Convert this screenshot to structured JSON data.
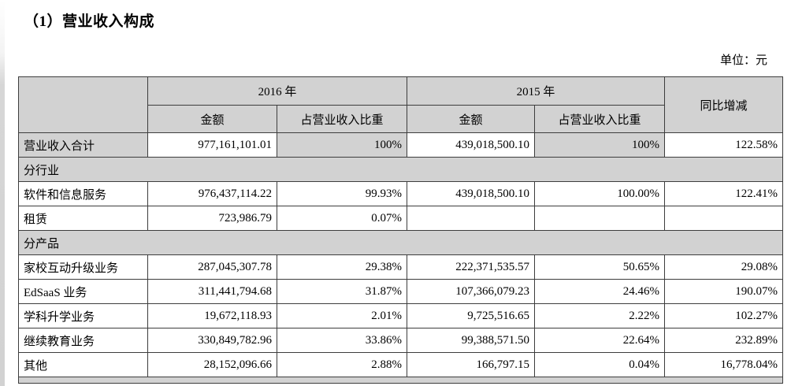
{
  "page": {
    "title": "（1）营业收入构成",
    "unit_label": "单位：元"
  },
  "table": {
    "header": {
      "year_2016": "2016 年",
      "year_2015": "2015 年",
      "yoy": "同比增减",
      "amount": "金额",
      "ratio": "占营业收入比重"
    },
    "rows": [
      {
        "type": "data",
        "label": "营业收入合计",
        "a2016": "977,161,101.01",
        "r2016": "100%",
        "a2015": "439,018,500.10",
        "r2015": "100%",
        "yoy": "122.58%"
      },
      {
        "type": "section",
        "label": "分行业"
      },
      {
        "type": "data",
        "label": "软件和信息服务",
        "a2016": "976,437,114.22",
        "r2016": "99.93%",
        "a2015": "439,018,500.10",
        "r2015": "100.00%",
        "yoy": "122.41%"
      },
      {
        "type": "data",
        "label": "租赁",
        "a2016": "723,986.79",
        "r2016": "0.07%",
        "a2015": "",
        "r2015": "",
        "yoy": ""
      },
      {
        "type": "section",
        "label": "分产品"
      },
      {
        "type": "data",
        "label": "家校互动升级业务",
        "a2016": "287,045,307.78",
        "r2016": "29.38%",
        "a2015": "222,371,535.57",
        "r2015": "50.65%",
        "yoy": "29.08%"
      },
      {
        "type": "data",
        "label": "EdSaaS 业务",
        "a2016": "311,441,794.68",
        "r2016": "31.87%",
        "a2015": "107,366,079.23",
        "r2015": "24.46%",
        "yoy": "190.07%"
      },
      {
        "type": "data",
        "label": "学科升学业务",
        "a2016": "19,672,118.93",
        "r2016": "2.01%",
        "a2015": "9,725,516.65",
        "r2015": "2.22%",
        "yoy": "102.27%"
      },
      {
        "type": "data",
        "label": "继续教育业务",
        "a2016": "330,849,782.96",
        "r2016": "33.86%",
        "a2015": "99,388,571.50",
        "r2015": "22.64%",
        "yoy": "232.89%"
      },
      {
        "type": "data",
        "label": "其他",
        "a2016": "28,152,096.66",
        "r2016": "2.88%",
        "a2015": "166,797.15",
        "r2015": "0.04%",
        "yoy": "16,778.04%"
      }
    ],
    "colors": {
      "header_bg": "#d2d2d2",
      "border": "#3d3d3d"
    }
  }
}
